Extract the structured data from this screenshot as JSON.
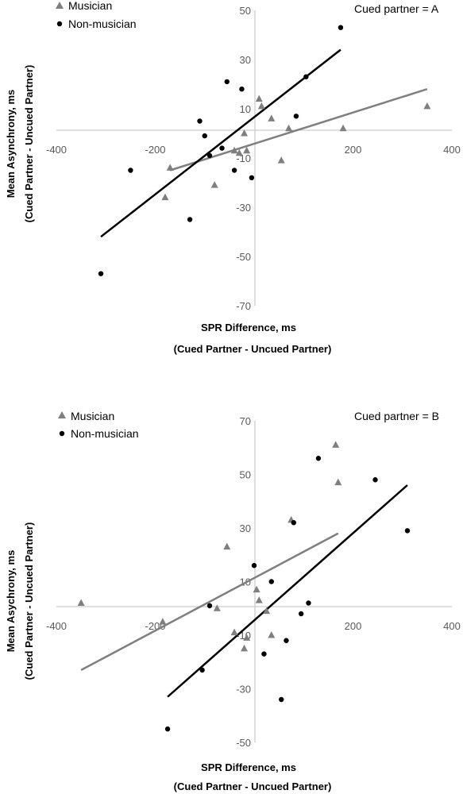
{
  "chart_data": [
    {
      "type": "scatter",
      "annotation": "Cued partner = A",
      "xlabel_line1": "SPR Difference, ms",
      "xlabel_line2": "(Cued Partner - Uncued Partner)",
      "ylabel_line1": "Mean Asynchrony, ms",
      "ylabel_line2": "(Cued Partner - Uncued Partner)",
      "xlim": [
        -400,
        400
      ],
      "ylim": [
        -70,
        50
      ],
      "x_ticks": [
        -400,
        -200,
        200,
        400
      ],
      "x_tick_labels": [
        "-400",
        "-200",
        "200",
        "400"
      ],
      "y_ticks": [
        -70,
        -50,
        -30,
        -10,
        10,
        30,
        50
      ],
      "y_tick_labels": [
        "-70",
        "-50",
        "-30",
        "-10",
        "10",
        "30",
        "50"
      ],
      "legend": "top-left",
      "series": [
        {
          "name": "Musician",
          "marker": "triangle",
          "color": "#7f7f7f",
          "points": [
            [
              -170,
              -14
            ],
            [
              -180,
              -26
            ],
            [
              -80,
              -21
            ],
            [
              -40,
              -7
            ],
            [
              -30,
              -8
            ],
            [
              -20,
              0
            ],
            [
              -15,
              -7
            ],
            [
              10,
              14
            ],
            [
              15,
              11
            ],
            [
              35,
              6
            ],
            [
              55,
              -11
            ],
            [
              70,
              2
            ],
            [
              180,
              2
            ],
            [
              350,
              11
            ]
          ],
          "fit": [
            [
              -170,
              -15
            ],
            [
              350,
              18
            ]
          ]
        },
        {
          "name": "Non-musician",
          "marker": "circle",
          "color": "#000000",
          "points": [
            [
              -310,
              -57
            ],
            [
              -250,
              -15
            ],
            [
              -130,
              -35
            ],
            [
              -110,
              5
            ],
            [
              -100,
              -1
            ],
            [
              -90,
              -9
            ],
            [
              -65,
              -6
            ],
            [
              -55,
              21
            ],
            [
              -40,
              -15
            ],
            [
              -25,
              18
            ],
            [
              -5,
              -18
            ],
            [
              85,
              7
            ],
            [
              105,
              23
            ],
            [
              175,
              43
            ]
          ],
          "fit": [
            [
              -310,
              -42
            ],
            [
              175,
              34
            ]
          ]
        }
      ]
    },
    {
      "type": "scatter",
      "annotation": "Cued partner = B",
      "xlabel_line1": "SPR Difference, ms",
      "xlabel_line2": "(Cued Partner - Uncued Partner)",
      "ylabel_line1": "Mean  Asychrony, ms",
      "ylabel_line2": "(Cued Partner - Uncued Partner)",
      "xlim": [
        -400,
        400
      ],
      "ylim": [
        -50,
        70
      ],
      "x_ticks": [
        -400,
        -200,
        200,
        400
      ],
      "x_tick_labels": [
        "-400",
        "-200",
        "200",
        "400"
      ],
      "y_ticks": [
        -50,
        -30,
        -10,
        10,
        30,
        50,
        70
      ],
      "y_tick_labels": [
        "-50",
        "-30",
        "-10",
        "10",
        "30",
        "50",
        "70"
      ],
      "legend": "top-left",
      "series": [
        {
          "name": "Musician",
          "marker": "triangle",
          "color": "#7f7f7f",
          "points": [
            [
              -350,
              2
            ],
            [
              -185,
              -5
            ],
            [
              -75,
              0
            ],
            [
              -55,
              23
            ],
            [
              -40,
              -9
            ],
            [
              -20,
              -15
            ],
            [
              -15,
              -11
            ],
            [
              5,
              7
            ],
            [
              10,
              3
            ],
            [
              25,
              -1
            ],
            [
              35,
              -10
            ],
            [
              75,
              33
            ],
            [
              165,
              61
            ],
            [
              170,
              47
            ]
          ],
          "fit": [
            [
              -350,
              -23
            ],
            [
              170,
              28
            ]
          ]
        },
        {
          "name": "Non-musician",
          "marker": "circle",
          "color": "#000000",
          "points": [
            [
              -175,
              -45
            ],
            [
              -105,
              -23
            ],
            [
              -90,
              1
            ],
            [
              0,
              16
            ],
            [
              20,
              -17
            ],
            [
              35,
              10
            ],
            [
              55,
              -34
            ],
            [
              65,
              -12
            ],
            [
              80,
              32
            ],
            [
              95,
              -2
            ],
            [
              110,
              2
            ],
            [
              130,
              56
            ],
            [
              245,
              48
            ],
            [
              310,
              29
            ]
          ],
          "fit": [
            [
              -175,
              -33
            ],
            [
              310,
              46
            ]
          ]
        }
      ]
    }
  ]
}
